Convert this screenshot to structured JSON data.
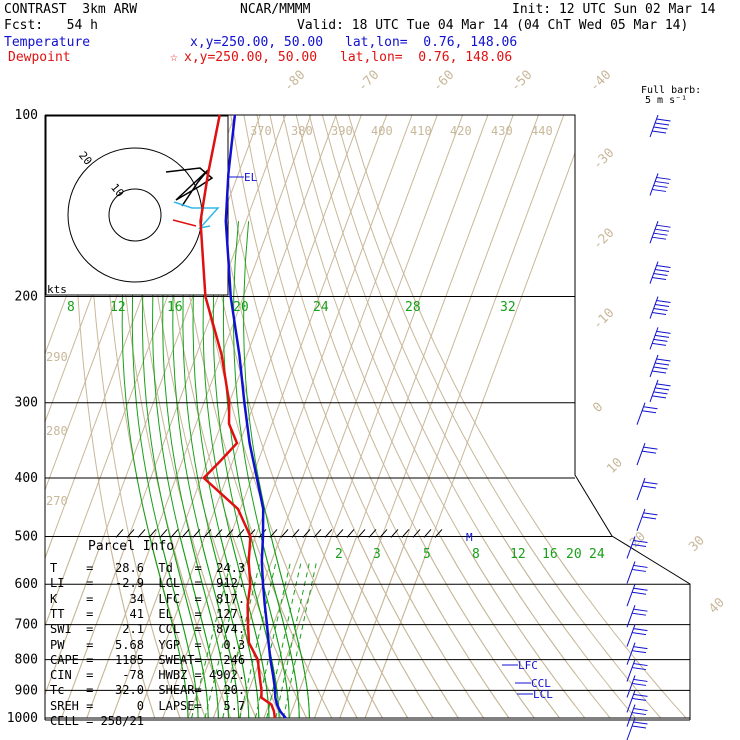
{
  "header": {
    "title": "CONTRAST  3km ARW",
    "model": "NCAR/MMMM",
    "init": "Init: 12 UTC Sun 02 Mar 14",
    "fcst": "Fcst:   54 h",
    "valid": "Valid: 18 UTC Tue 04 Mar 14 (04 ChT Wed 05 Mar 14)",
    "temp_label": "Temperature",
    "temp_xy": "x,y=250.00, 50.00",
    "temp_latlon": "lat,lon=  0.76, 148.06",
    "dew_label": "Dewpoint",
    "dew_xy": "x,y=250.00, 50.00",
    "dew_latlon": "lat,lon=  0.76, 148.06",
    "dew_marker": "☆",
    "barb_title_1": "Full barb:",
    "barb_title_2": "5 m s⁻¹"
  },
  "colors": {
    "temperature": "#1010d0",
    "dewpoint": "#e01010",
    "isotherm": "#c8b89a",
    "mixing_ratio": "#18a018",
    "hodo_temp": "#30b8e8"
  },
  "chart_data": {
    "type": "line",
    "title": "",
    "pressure_levels": [
      "100",
      "200",
      "300",
      "400",
      "500",
      "600",
      "700",
      "800",
      "900",
      "1000"
    ],
    "isotherm_labels": [
      "-80",
      "-70",
      "-60",
      "-50",
      "-40",
      "-30",
      "-20",
      "-10",
      "0",
      "10",
      "20",
      "30",
      "40"
    ],
    "theta_labels": [
      "370",
      "380",
      "390",
      "400",
      "410",
      "420",
      "430",
      "440",
      "290",
      "280",
      "270"
    ],
    "mixing_ratio_labels_upper": [
      "8",
      "12",
      "16",
      "20",
      "24",
      "28",
      "32"
    ],
    "mixing_ratio_labels_lower": [
      "2",
      "3",
      "5",
      "8",
      "12",
      "16",
      "20",
      "24"
    ],
    "level_labels": [
      "EL",
      "LFC",
      "CCL",
      "LCL",
      "M"
    ],
    "series": [
      {
        "name": "Temperature",
        "pressure": [
          1000,
          975,
          950,
          925,
          900,
          850,
          800,
          750,
          700,
          650,
          600,
          550,
          500,
          450,
          400,
          350,
          300,
          250,
          200,
          175,
          150,
          125,
          100
        ],
        "temperature": [
          28.6,
          25.5,
          23.2,
          21.5,
          20.4,
          17.4,
          14.0,
          10.8,
          7.5,
          3.8,
          0.0,
          -3.8,
          -7.0,
          -11.0,
          -18.0,
          -26.0,
          -34.0,
          -43.0,
          -55.0,
          -61.0,
          -68.0,
          -74.0,
          -80.0
        ]
      },
      {
        "name": "Dewpoint",
        "pressure": [
          1000,
          975,
          950,
          925,
          900,
          850,
          800,
          750,
          700,
          650,
          600,
          550,
          500,
          450,
          400,
          375,
          350,
          325,
          300,
          250,
          200,
          150,
          125,
          100
        ],
        "temperature": [
          24.3,
          23.0,
          21.0,
          16.0,
          15.0,
          12.0,
          9.0,
          3.0,
          0.0,
          -3.0,
          -5.0,
          -9.0,
          -12.0,
          -21.0,
          -39.0,
          -35.0,
          -31.0,
          -37.0,
          -40.0,
          -50.0,
          -65.0,
          -78.0,
          -82.0,
          -86.0
        ]
      }
    ],
    "wind_barbs": {
      "title": "Full barb: 5 m s-1",
      "pressure": [
        100,
        125,
        150,
        175,
        200,
        225,
        250,
        275,
        300,
        350,
        400,
        450,
        500,
        550,
        600,
        650,
        700,
        750,
        800,
        850,
        900,
        950,
        1000
      ],
      "count_pressure_note": "profile at right"
    },
    "hodograph": {
      "units_label": "kts",
      "ring_labels": [
        "10",
        "20"
      ]
    }
  },
  "parcel_info": {
    "title": "Parcel Info",
    "rows": [
      {
        "k1": "T",
        "v1": "28.6",
        "k2": "Td",
        "v2": "24.3"
      },
      {
        "k1": "LI",
        "v1": "-2.9",
        "k2": "LCL",
        "v2": "912."
      },
      {
        "k1": "K",
        "v1": "34",
        "k2": "LFC",
        "v2": "817."
      },
      {
        "k1": "TT",
        "v1": "41",
        "k2": "EL",
        "v2": "127."
      },
      {
        "k1": "SWI",
        "v1": "2.1",
        "k2": "CCL",
        "v2": "874."
      },
      {
        "k1": "PW",
        "v1": "5.68",
        "k2": "YGP",
        "v2": "0.3"
      },
      {
        "k1": "CAPE",
        "v1": "1185",
        "k2": "SWEAT",
        "v2": "246"
      },
      {
        "k1": "CIN",
        "v1": "-78",
        "k2": "HWBZ",
        "v2": "4902."
      },
      {
        "k1": "Tc",
        "v1": "32.0",
        "k2": "SHEAR",
        "v2": "20."
      },
      {
        "k1": "SREH",
        "v1": "0",
        "k2": "LAPSE",
        "v2": "5.7"
      }
    ],
    "cell": "CELL = 258/21"
  }
}
